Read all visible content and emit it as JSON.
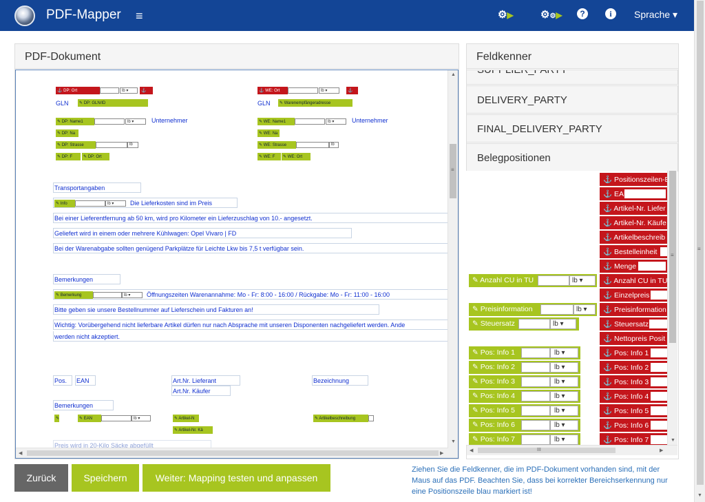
{
  "navbar": {
    "brand": "PDF-Mapper",
    "menu_icon": "hamburger-icon",
    "lang_label": "Sprache ▾",
    "icon1": "⚙",
    "icon2": "⚙",
    "icon3": "?",
    "icon4": "i",
    "play": "▶"
  },
  "left_panel": {
    "title": "PDF-Dokument"
  },
  "pdf": {
    "anchors": {
      "dp_ort": "⚓ DP: Ort",
      "we_ort": "⚓ WE: Ort",
      "dp_glnid": "✎ DP: GLN/ID",
      "we_gln": "✎ Warenempfängeradresse",
      "dp_name": "✎ DP: Name1",
      "we_name": "✎ WE: Name1",
      "dp_na": "✎ DP: Na",
      "we_na": "✎ WE: Na",
      "dp_str": "✎ DP: Strasse",
      "we_str": "✎ WE: Strasse",
      "dp_p": "✎ DP: F",
      "dp_ort2": "✎ DP: Ort",
      "we_p": "✎ WE: F",
      "we_ort2": "✎ WE: Ort",
      "info": "✎ Info",
      "bem": "✎ Bemerkung",
      "ean": "✎ EAN",
      "artnr": "✎ Artikel-N",
      "artkae": "✎ Artikel-Nr. Kä",
      "artbez": "✎ Artikelbeschreibung",
      "anchor": "⚓",
      "lb": "lb",
      "arrow": "▾",
      "pen": "✎"
    },
    "text": {
      "gln": "GLN",
      "unternehmer": "Unternehmer",
      "transport": "Transportangaben",
      "lieferkosten": "Die Lieferkosten sind im Preis",
      "line1": "Bei einer Lieferentfernung ab 50 km, wird pro Kilometer ein Lieferzuschlag von 10.- angesetzt.",
      "line2": "Geliefert wird in einem oder mehrere Kühlwagen: Opel Vivaro | FD",
      "line3": "Bei der Warenabgabe sollten genügend Parkplätze für Leichte Lkw bis 7,5 t verfügbar sein.",
      "bemerkungen": "Bemerkungen",
      "oeffnung": "Öffnungszeiten Warenannahme: Mo - Fr: 8:00 - 16:00 / Rückgabe: Mo - Fr: 11:00 - 16:00",
      "bestell": "Bitte geben sie unsere Bestellnummer auf Lieferschein und Fakturen an!",
      "wichtig": "Wichtig: Vorübergehend nicht lieferbare Artikel dürfen nur nach Absprache mit unseren Disponenten nachgeliefert werden. Ande",
      "wichtig2": "werden nicht akzeptiert.",
      "pos": "Pos.",
      "ean": "EAN",
      "artlief": "Art.Nr. Lieferant",
      "artkaeufer": "Art.Nr. Käufer",
      "bezeichnung": "Bezeichnung",
      "bemerkungen2": "Bemerkungen",
      "preis": "Preis wird in 20-Kilo Säcke abgefüllt"
    }
  },
  "right_panel": {
    "title": "Feldkenner",
    "sections": [
      "SUPPLIER_PARTY",
      "DELIVERY_PARTY",
      "FINAL_DELIVERY_PARTY",
      "Belegpositionen"
    ]
  },
  "fields": {
    "red": [
      "⚓ Positionszeilen-B",
      "⚓ EAN",
      "⚓ Artikel-Nr. Liefer",
      "⚓ Artikel-Nr. Käufe",
      "⚓ Artikelbeschreib",
      "⚓ Bestelleinheit",
      "⚓ Menge",
      "⚓ Anzahl CU in TU",
      "⚓ Einzelpreis",
      "⚓ Preisinformation",
      "⚓ Steuersatz",
      "⚓ Nettopreis Posit",
      "⚓ Pos: Info 1",
      "⚓ Pos: Info 2",
      "⚓ Pos: Info 3",
      "⚓ Pos: Info 4",
      "⚓ Pos: Info 5",
      "⚓ Pos: Info 6",
      "⚓ Pos: Info 7"
    ],
    "green": [
      "✎ Anzahl CU in TU",
      "✎ Preisinformation",
      "✎ Steuersatz",
      "✎ Pos: Info 1",
      "✎ Pos: Info 2",
      "✎ Pos: Info 3",
      "✎ Pos: Info 4",
      "✎ Pos: Info 5",
      "✎ Pos: Info 6",
      "✎ Pos: Info 7"
    ],
    "sel": "lb  ▾"
  },
  "buttons": {
    "back": "Zurück",
    "save": "Speichern",
    "next": "Weiter: Mapping testen und anpassen"
  },
  "help": "Ziehen Sie die Feldkenner, die im PDF-Dokument vorhanden sind, mit der Maus auf das PDF. Beachten Sie, dass bei korrekter Bereichserkennung nur eine Positionszeile blau markiert ist!",
  "scroll": {
    "up": "▲",
    "down": "▼",
    "left": "◀",
    "right": "▶",
    "grip": "≡",
    "hgrip": "III"
  },
  "colors": {
    "navbar": "#134596",
    "red": "#c4161c",
    "green": "#a7c520",
    "back": "#666666",
    "text_blue": "#0f2fd0"
  }
}
